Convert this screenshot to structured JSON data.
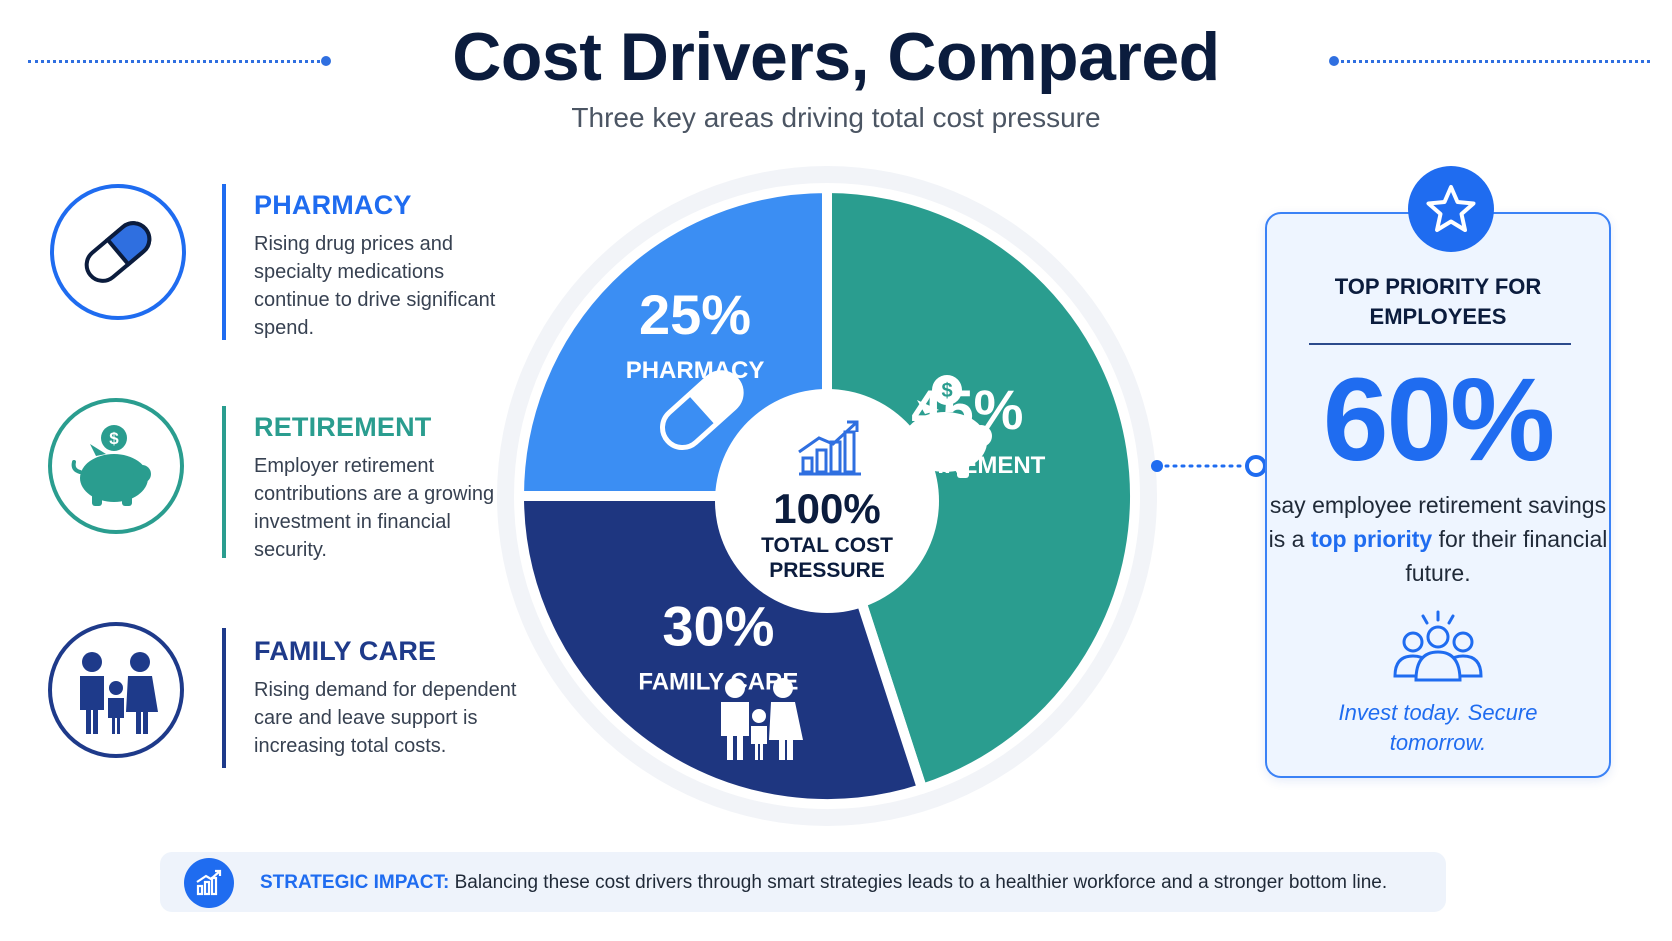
{
  "header": {
    "title": "Cost Drivers, Compared",
    "subtitle": "Three key areas driving total cost pressure"
  },
  "legend": [
    {
      "heading": "PHARMACY",
      "text": "Rising drug prices and specialty medications continue to drive significant spend.",
      "icon": "pill-icon",
      "color": "#1f6cf0"
    },
    {
      "heading": "RETIREMENT",
      "text": "Employer retirement contributions are a growing investment in financial security.",
      "icon": "piggy-bank-icon",
      "color": "#2a9d8f"
    },
    {
      "heading": "FAMILY CARE",
      "text": "Rising demand for dependent care and leave support is increasing total costs.",
      "icon": "family-icon",
      "color": "#1e3a8a"
    }
  ],
  "chart_data": {
    "type": "pie",
    "slices": [
      {
        "label": "PHARMACY",
        "value": 25,
        "value_label": "25%",
        "color": "#3b8ef3",
        "icon": "pill-icon"
      },
      {
        "label": "RETIREMENT",
        "value": 45,
        "value_label": "45%",
        "color": "#2a9d8f",
        "icon": "piggy-bank-icon"
      },
      {
        "label": "FAMILY CARE",
        "value": 30,
        "value_label": "30%",
        "color": "#1e3680",
        "icon": "family-icon"
      }
    ],
    "center": {
      "value": "100%",
      "label_line1": "TOTAL COST",
      "label_line2": "PRESSURE",
      "icon": "growth-chart-icon"
    }
  },
  "callout": {
    "heading_line1": "TOP PRIORITY FOR",
    "heading_line2": "EMPLOYEES",
    "big_number": "60%",
    "text_before": "say employee retirement savings is a ",
    "text_highlight": "top priority",
    "text_after": " for their financial future.",
    "footer_line1": "Invest today. Secure",
    "footer_line2": "tomorrow.",
    "icon": "star-icon",
    "people_icon": "group-icon"
  },
  "banner": {
    "label": "STRATEGIC IMPACT:",
    "text": " Balancing these cost drivers through smart strategies leads to a healthier workforce and a stronger bottom line.",
    "icon": "growth-chart-icon"
  }
}
